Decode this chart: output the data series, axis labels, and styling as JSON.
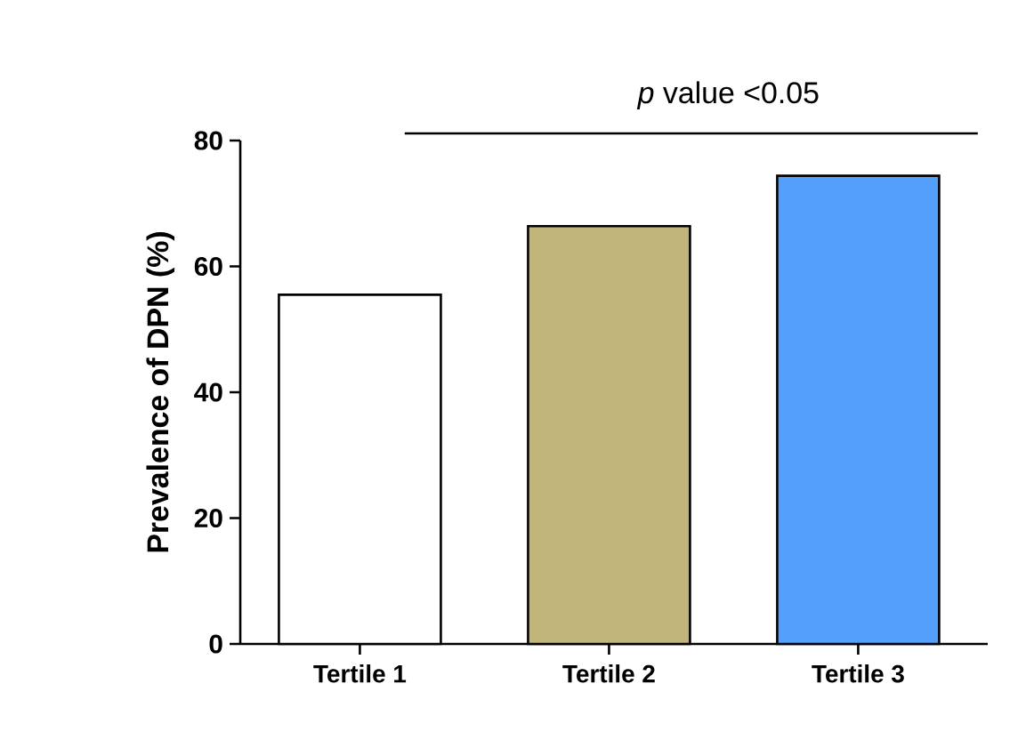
{
  "chart_data": {
    "type": "bar",
    "categories": [
      "Tertile 1",
      "Tertile 2",
      "Tertile 3"
    ],
    "values": [
      55.5,
      66.4,
      74.4
    ],
    "colors": [
      "#ffffff",
      "#c2b57c",
      "#549ffb"
    ],
    "ylabel": "Prevalence of DPN (%)",
    "ylim": [
      0,
      80
    ],
    "yticks": [
      0,
      20,
      40,
      60,
      80
    ],
    "annotations": [
      "*p* value <0.05"
    ],
    "grid": false
  }
}
